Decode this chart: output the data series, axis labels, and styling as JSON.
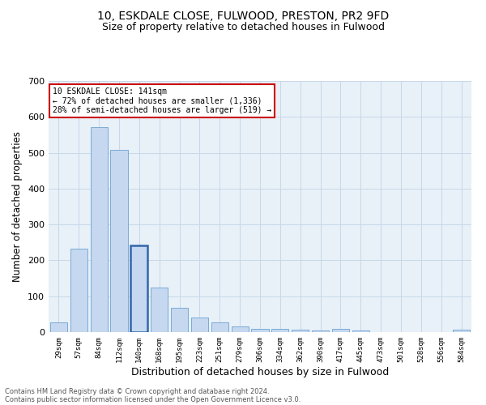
{
  "title1": "10, ESKDALE CLOSE, FULWOOD, PRESTON, PR2 9FD",
  "title2": "Size of property relative to detached houses in Fulwood",
  "xlabel": "Distribution of detached houses by size in Fulwood",
  "ylabel": "Number of detached properties",
  "categories": [
    "29sqm",
    "57sqm",
    "84sqm",
    "112sqm",
    "140sqm",
    "168sqm",
    "195sqm",
    "223sqm",
    "251sqm",
    "279sqm",
    "306sqm",
    "334sqm",
    "362sqm",
    "390sqm",
    "417sqm",
    "445sqm",
    "473sqm",
    "501sqm",
    "528sqm",
    "556sqm",
    "584sqm"
  ],
  "values": [
    27,
    232,
    572,
    508,
    242,
    124,
    68,
    41,
    27,
    15,
    9,
    9,
    7,
    5,
    9,
    5,
    0,
    0,
    0,
    0,
    6
  ],
  "bar_color": "#c5d8f0",
  "bar_edge_color": "#7baad4",
  "highlight_bar_index": 4,
  "highlight_bar_edge_color": "#3366aa",
  "annotation_box_text": "10 ESKDALE CLOSE: 141sqm\n← 72% of detached houses are smaller (1,336)\n28% of semi-detached houses are larger (519) →",
  "annotation_box_color": "#ffffff",
  "annotation_box_edge_color": "#cc0000",
  "footer_line1": "Contains HM Land Registry data © Crown copyright and database right 2024.",
  "footer_line2": "Contains public sector information licensed under the Open Government Licence v3.0.",
  "ylim": [
    0,
    700
  ],
  "yticks": [
    0,
    100,
    200,
    300,
    400,
    500,
    600,
    700
  ],
  "grid_color": "#c8d8e8",
  "bg_color": "#e8f0f8"
}
